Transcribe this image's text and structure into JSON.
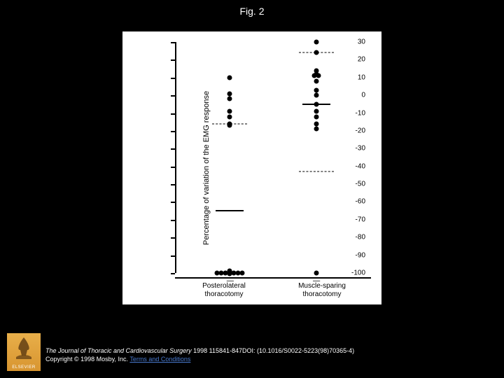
{
  "figure": {
    "title": "Fig. 2",
    "chart": {
      "type": "scatter",
      "y_label": "Percentage of variation of the EMG response",
      "ylim": [
        -100,
        30
      ],
      "yticks": [
        30,
        20,
        10,
        0,
        -10,
        -20,
        -30,
        -40,
        -50,
        -60,
        -70,
        -80,
        -90,
        -100
      ],
      "ytick_step": 10,
      "categories": [
        {
          "label_line1": "Posterolateral",
          "label_line2": "thoracotomy",
          "x": 0.28
        },
        {
          "label_line1": "Muscle-sparing",
          "label_line2": "thoracotomy",
          "x": 0.72
        }
      ],
      "points_group1": [
        10,
        1,
        -2,
        -9,
        -12,
        -16,
        -17,
        -99,
        -99.5,
        -100,
        -100,
        -100,
        -100,
        -100,
        -100,
        -100,
        -100.5
      ],
      "points_group2": [
        30,
        24,
        14,
        12,
        11,
        11,
        8,
        3,
        0,
        -5,
        -9,
        -12,
        -16,
        -19,
        -100
      ],
      "point_color": "#000000",
      "point_radius": 3.5,
      "bg_color": "#ffffff",
      "axis_color": "#000000",
      "tick_fontsize": 10,
      "label_fontsize": 11,
      "group1_dashed_line": -16,
      "group1_solid_line": -65,
      "group2_dashed_upper": 24,
      "group2_solid_line": -5,
      "group2_dashed_lower": -43
    }
  },
  "footer": {
    "journal": "The Journal of Thoracic and Cardiovascular Surgery",
    "citation": " 1998 115841-847DOI: (10.1016/S0022-5223(98)70365-4)",
    "copyright_prefix": "Copyright © 1998 Mosby, Inc. ",
    "terms_link": "Terms and Conditions"
  },
  "logo": {
    "text": "ELSEVIER"
  }
}
